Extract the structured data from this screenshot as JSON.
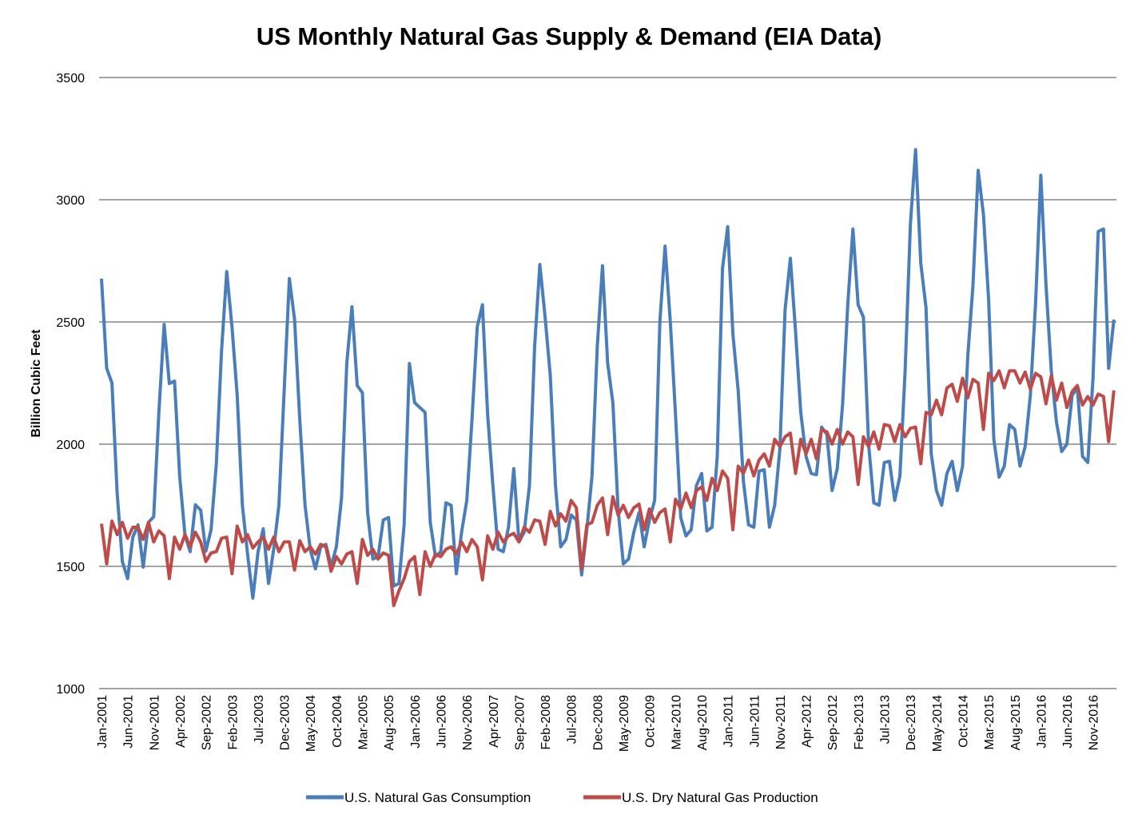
{
  "chart_data": {
    "type": "line",
    "title": "US Monthly Natural Gas Supply & Demand (EIA Data)",
    "xlabel": "",
    "ylabel": "Billion Cubic Feet",
    "ylim": [
      1000,
      3500
    ],
    "y_ticks": [
      1000,
      1500,
      2000,
      2500,
      3000,
      3500
    ],
    "grid": "horizontal",
    "legend_position": "bottom",
    "x_frequency": "monthly",
    "x_range": [
      "Jan-2001",
      "Mar-2017"
    ],
    "x_tick_labels": [
      "Jan-2001",
      "Jun-2001",
      "Nov-2001",
      "Apr-2002",
      "Sep-2002",
      "Feb-2003",
      "Jul-2003",
      "Dec-2003",
      "May-2004",
      "Oct-2004",
      "Mar-2005",
      "Aug-2005",
      "Jan-2006",
      "Jun-2006",
      "Nov-2006",
      "Apr-2007",
      "Sep-2007",
      "Feb-2008",
      "Jul-2008",
      "Dec-2008",
      "May-2009",
      "Oct-2009",
      "Mar-2010",
      "Aug-2010",
      "Jan-2011",
      "Jun-2011",
      "Nov-2011",
      "Apr-2012",
      "Sep-2012",
      "Feb-2013",
      "Jul-2013",
      "Dec-2013",
      "May-2014",
      "Oct-2014",
      "Mar-2015",
      "Aug-2015",
      "Jan-2016",
      "Jun-2016",
      "Nov-2016"
    ],
    "series": [
      {
        "name": "U.S. Natural Gas Consumption",
        "color": "#4a7ebb",
        "values": [
          2677,
          2310,
          2250,
          1800,
          1520,
          1450,
          1620,
          1670,
          1497,
          1680,
          1703,
          2130,
          2490,
          2248,
          2258,
          1866,
          1627,
          1560,
          1752,
          1730,
          1562,
          1650,
          1920,
          2380,
          2706,
          2480,
          2200,
          1750,
          1550,
          1370,
          1560,
          1654,
          1430,
          1570,
          1750,
          2220,
          2677,
          2510,
          2100,
          1750,
          1570,
          1490,
          1580,
          1590,
          1500,
          1580,
          1780,
          2330,
          2562,
          2240,
          2210,
          1720,
          1530,
          1540,
          1690,
          1700,
          1420,
          1430,
          1670,
          2330,
          2170,
          2150,
          2130,
          1680,
          1540,
          1560,
          1760,
          1750,
          1470,
          1640,
          1770,
          2100,
          2480,
          2570,
          2120,
          1830,
          1570,
          1560,
          1660,
          1900,
          1600,
          1640,
          1830,
          2400,
          2735,
          2520,
          2280,
          1830,
          1580,
          1610,
          1710,
          1690,
          1465,
          1650,
          1870,
          2400,
          2730,
          2330,
          2170,
          1730,
          1510,
          1530,
          1640,
          1720,
          1580,
          1690,
          1770,
          2500,
          2810,
          2500,
          2120,
          1700,
          1625,
          1650,
          1830,
          1880,
          1645,
          1660,
          1950,
          2720,
          2890,
          2450,
          2220,
          1850,
          1670,
          1660,
          1890,
          1895,
          1660,
          1750,
          1980,
          2550,
          2760,
          2460,
          2130,
          1950,
          1880,
          1875,
          2070,
          2040,
          1810,
          1900,
          2160,
          2570,
          2880,
          2570,
          2520,
          2000,
          1760,
          1750,
          1925,
          1930,
          1770,
          1870,
          2300,
          2900,
          3205,
          2740,
          2560,
          1960,
          1810,
          1750,
          1880,
          1930,
          1810,
          1910,
          2360,
          2650,
          3120,
          2940,
          2590,
          2020,
          1865,
          1910,
          2080,
          2060,
          1910,
          1990,
          2200,
          2580,
          3100,
          2650,
          2300,
          2090,
          1970,
          2000,
          2200,
          2230,
          1950,
          1925,
          2270,
          2870,
          2880,
          2310,
          2510
        ]
      },
      {
        "name": "U.S. Dry Natural Gas Production",
        "color": "#be4b48",
        "values": [
          1675,
          1510,
          1685,
          1630,
          1680,
          1615,
          1660,
          1660,
          1610,
          1680,
          1600,
          1645,
          1625,
          1450,
          1620,
          1570,
          1630,
          1580,
          1640,
          1600,
          1520,
          1555,
          1560,
          1615,
          1620,
          1470,
          1665,
          1600,
          1630,
          1575,
          1600,
          1620,
          1570,
          1620,
          1560,
          1600,
          1600,
          1485,
          1605,
          1560,
          1580,
          1550,
          1590,
          1580,
          1480,
          1540,
          1510,
          1550,
          1560,
          1430,
          1610,
          1545,
          1570,
          1530,
          1555,
          1545,
          1340,
          1400,
          1450,
          1520,
          1540,
          1385,
          1560,
          1500,
          1550,
          1540,
          1570,
          1580,
          1550,
          1600,
          1560,
          1610,
          1580,
          1445,
          1625,
          1570,
          1640,
          1600,
          1625,
          1635,
          1600,
          1660,
          1640,
          1690,
          1685,
          1590,
          1725,
          1665,
          1715,
          1685,
          1770,
          1740,
          1490,
          1670,
          1680,
          1750,
          1780,
          1630,
          1785,
          1710,
          1750,
          1700,
          1740,
          1755,
          1650,
          1735,
          1680,
          1720,
          1735,
          1600,
          1775,
          1735,
          1800,
          1740,
          1810,
          1825,
          1770,
          1860,
          1810,
          1890,
          1860,
          1650,
          1910,
          1880,
          1935,
          1870,
          1935,
          1960,
          1910,
          2020,
          1990,
          2030,
          2045,
          1880,
          2020,
          1960,
          2020,
          1940,
          2060,
          2050,
          2000,
          2060,
          2000,
          2050,
          2030,
          1835,
          2030,
          1990,
          2050,
          1980,
          2080,
          2075,
          2010,
          2080,
          2030,
          2065,
          2070,
          1920,
          2130,
          2120,
          2180,
          2120,
          2230,
          2245,
          2175,
          2270,
          2190,
          2265,
          2250,
          2060,
          2290,
          2260,
          2300,
          2230,
          2300,
          2300,
          2250,
          2295,
          2225,
          2290,
          2275,
          2165,
          2280,
          2180,
          2250,
          2150,
          2215,
          2240,
          2160,
          2195,
          2160,
          2205,
          2195,
          2010,
          2220
        ]
      }
    ]
  }
}
